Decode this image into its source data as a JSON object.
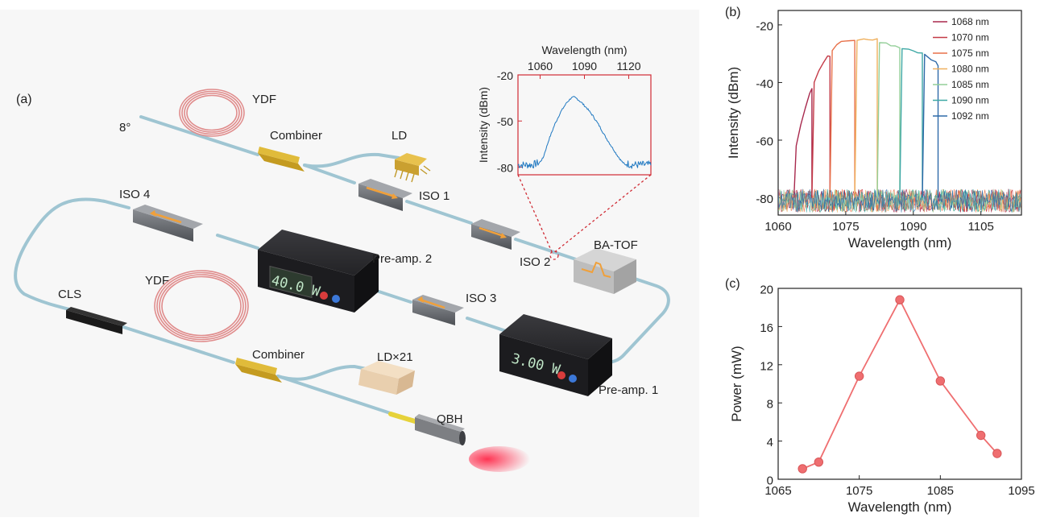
{
  "panels": {
    "a": "(a)",
    "b": "(b)",
    "c": "(c)"
  },
  "setup": {
    "ydf_top": "YDF",
    "angle": "8°",
    "combiner_top": "Combiner",
    "ld": "LD",
    "iso1": "ISO 1",
    "iso2": "ISO 2",
    "iso3": "ISO 3",
    "iso4": "ISO 4",
    "preamp2": "Pre-amp. 2",
    "preamp1": "Pre-amp. 1",
    "display2": "40.0 W",
    "display1": "3.00 W",
    "ba_tof": "BA-TOF",
    "cls": "CLS",
    "ydf_bottom": "YDF",
    "combiner_bottom": "Combiner",
    "ld21": "LD×21",
    "qbh": "QBH"
  },
  "colors": {
    "fiber": "#a9cdd9",
    "ydf": "#e38f8f",
    "combiner": "#d9b230",
    "box": "#2b2b2e",
    "inset_frame": "#d02c35",
    "spectrum": "#1f78c1",
    "power_curve": "#ef6e70"
  },
  "chart_data": [
    {
      "id": "inset",
      "type": "line",
      "xlabel": "Wavelength (nm)",
      "ylabel": "Intensity (dBm)",
      "xlim": [
        1045,
        1135
      ],
      "ylim": [
        -85,
        -20
      ],
      "xticks": [
        1060,
        1090,
        1120
      ],
      "yticks": [
        -20,
        -50,
        -80
      ],
      "x_axis_position": "top",
      "series": [
        {
          "x": [
            1045,
            1050,
            1055,
            1058,
            1062,
            1066,
            1070,
            1074,
            1078,
            1081,
            1083,
            1085,
            1088,
            1092,
            1096,
            1100,
            1104,
            1108,
            1112,
            1115,
            1118,
            1122,
            1126,
            1130,
            1135
          ],
          "y": [
            -80,
            -80,
            -80,
            -79,
            -74,
            -62,
            -52,
            -44,
            -38,
            -35,
            -34.5,
            -35.5,
            -38,
            -42,
            -47,
            -53,
            -60,
            -66,
            -72,
            -76,
            -79,
            -80,
            -80,
            -80,
            -80
          ]
        }
      ]
    },
    {
      "id": "b",
      "type": "line",
      "xlabel": "Wavelength (nm)",
      "ylabel": "Intensity (dBm)",
      "xlim": [
        1060,
        1114
      ],
      "ylim": [
        -86,
        -15
      ],
      "xticks": [
        1060,
        1075,
        1090,
        1105
      ],
      "yticks": [
        -20,
        -40,
        -60,
        -80
      ],
      "legend_position": "top-right",
      "noise_floor": -80,
      "series": [
        {
          "name": "1068 nm",
          "color": "#a8294d",
          "x": [
            1063.5,
            1064,
            1065,
            1066,
            1067,
            1067.5
          ],
          "y": [
            -80,
            -62,
            -55,
            -49,
            -44,
            -42
          ]
        },
        {
          "name": "1070 nm",
          "color": "#c43a47",
          "x": [
            1067.5,
            1068,
            1069,
            1070,
            1071,
            1071.5
          ],
          "y": [
            -80,
            -40,
            -36,
            -33,
            -31,
            -31
          ]
        },
        {
          "name": "1075 nm",
          "color": "#e8714a",
          "x": [
            1071.5,
            1072,
            1073,
            1074,
            1075,
            1076,
            1077
          ],
          "y": [
            -80,
            -29,
            -27,
            -26,
            -25.5,
            -25.5,
            -25.5
          ]
        },
        {
          "name": "1080 nm",
          "color": "#efb05e",
          "x": [
            1077,
            1077.5,
            1079,
            1080,
            1081,
            1082
          ],
          "y": [
            -80,
            -25.5,
            -25,
            -25,
            -25,
            -25
          ]
        },
        {
          "name": "1085 nm",
          "color": "#94cf99",
          "x": [
            1082,
            1082.5,
            1084,
            1085,
            1086,
            1087
          ],
          "y": [
            -80,
            -26,
            -26.5,
            -27,
            -27.5,
            -28
          ]
        },
        {
          "name": "1090 nm",
          "color": "#3ea8a5",
          "x": [
            1087,
            1087.5,
            1089,
            1090,
            1091,
            1092
          ],
          "y": [
            -80,
            -28,
            -28.5,
            -29,
            -29.5,
            -30
          ]
        },
        {
          "name": "1092 nm",
          "color": "#2f6aa8",
          "x": [
            1092,
            1092.5,
            1093,
            1094,
            1095,
            1095.5
          ],
          "y": [
            -80,
            -30,
            -31,
            -32,
            -33,
            -34
          ]
        }
      ]
    },
    {
      "id": "c",
      "type": "line",
      "xlabel": "Wavelength (nm)",
      "ylabel": "Power (mW)",
      "xlim": [
        1065,
        1095
      ],
      "ylim": [
        0,
        20
      ],
      "xticks": [
        1065,
        1075,
        1085,
        1095
      ],
      "yticks": [
        0,
        4,
        8,
        12,
        16,
        20
      ],
      "series": [
        {
          "x": [
            1068,
            1070,
            1075,
            1080,
            1085,
            1090,
            1092
          ],
          "y": [
            1.1,
            1.8,
            10.8,
            18.8,
            10.3,
            4.6,
            2.7
          ]
        }
      ]
    }
  ]
}
